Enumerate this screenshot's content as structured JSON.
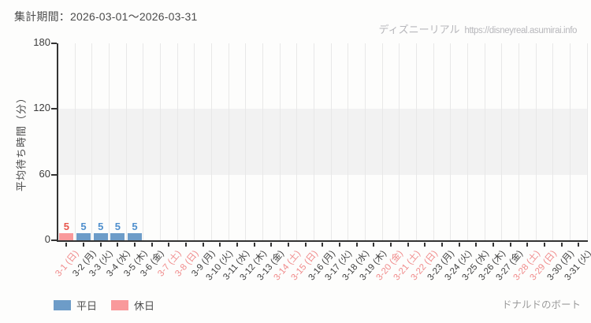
{
  "header": {
    "period_label": "集計期間：2026-03-01～2026-03-31",
    "watermark_brand": "ディズニーリアル",
    "watermark_url": "https://disneyreal.asumirai.info"
  },
  "legend": {
    "weekday": "平日",
    "holiday": "休日"
  },
  "footer": {
    "attraction": "ドナルドのボート"
  },
  "colors": {
    "weekday_bar": "#6d9cc8",
    "holiday_bar": "#f9999b",
    "weekday_value_label": "#4f8fcd",
    "holiday_value_label": "#e8574d",
    "weekday_tick_label": "#3f3f3f",
    "holiday_tick_label": "#f08b8b",
    "axis": "#333333",
    "gridline": "#e8e8e8",
    "band": "#f2f2f2"
  },
  "chart_data": {
    "type": "bar",
    "title": "",
    "xlabel": "",
    "ylabel": "平均待ち時間（分）",
    "ylim": [
      0,
      180
    ],
    "yticks": [
      0,
      60,
      120,
      180
    ],
    "reference_band": [
      60,
      120
    ],
    "grid": "vertical-only",
    "legend_position": "bottom-left",
    "categories": [
      "3-1 (日)",
      "3-2 (月)",
      "3-3 (火)",
      "3-4 (水)",
      "3-5 (木)",
      "3-6 (金)",
      "3-7 (土)",
      "3-8 (日)",
      "3-9 (月)",
      "3-10 (火)",
      "3-11 (水)",
      "3-12 (木)",
      "3-13 (金)",
      "3-14 (土)",
      "3-15 (日)",
      "3-16 (月)",
      "3-17 (火)",
      "3-18 (水)",
      "3-19 (木)",
      "3-20 (金)",
      "3-21 (土)",
      "3-22 (日)",
      "3-23 (月)",
      "3-24 (火)",
      "3-25 (水)",
      "3-26 (木)",
      "3-27 (金)",
      "3-28 (土)",
      "3-29 (日)",
      "3-30 (月)",
      "3-31 (火)"
    ],
    "day_types": [
      "holiday",
      "weekday",
      "weekday",
      "weekday",
      "weekday",
      "weekday",
      "holiday",
      "holiday",
      "weekday",
      "weekday",
      "weekday",
      "weekday",
      "weekday",
      "holiday",
      "holiday",
      "weekday",
      "weekday",
      "weekday",
      "weekday",
      "holiday",
      "holiday",
      "holiday",
      "weekday",
      "weekday",
      "weekday",
      "weekday",
      "weekday",
      "holiday",
      "holiday",
      "weekday",
      "weekday"
    ],
    "values": [
      5,
      5,
      5,
      5,
      5,
      null,
      null,
      null,
      null,
      null,
      null,
      null,
      null,
      null,
      null,
      null,
      null,
      null,
      null,
      null,
      null,
      null,
      null,
      null,
      null,
      null,
      null,
      null,
      null,
      null,
      null
    ]
  }
}
